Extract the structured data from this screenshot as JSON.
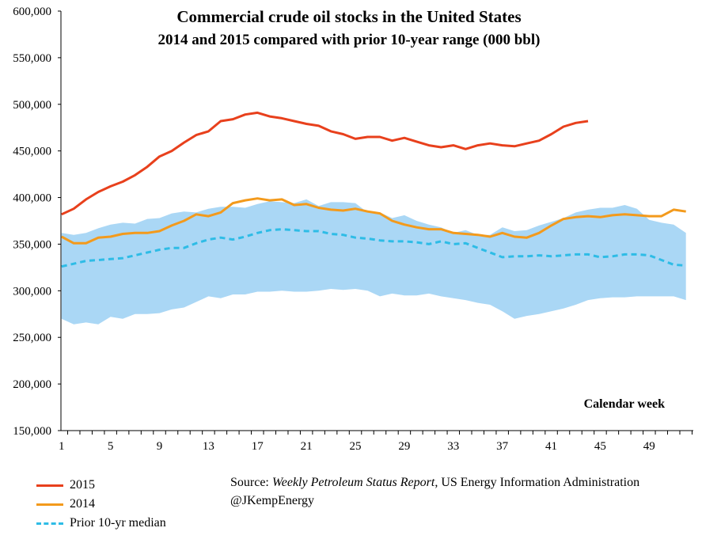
{
  "chart_data": {
    "type": "line",
    "title": "Commercial crude oil stocks in the United States",
    "subtitle": "2014 and 2015 compared with prior 10-year range (000 bbl)",
    "xlabel": "Calendar week",
    "ylabel": "",
    "xlim": [
      1,
      52
    ],
    "ylim": [
      150000,
      600000
    ],
    "x_ticks": [
      1,
      5,
      9,
      13,
      17,
      21,
      25,
      29,
      33,
      37,
      41,
      45,
      49
    ],
    "y_ticks": [
      150000,
      200000,
      250000,
      300000,
      350000,
      400000,
      450000,
      500000,
      550000,
      600000
    ],
    "y_tick_labels": [
      "150,000",
      "200,000",
      "250,000",
      "300,000",
      "350,000",
      "400,000",
      "450,000",
      "500,000",
      "550,000",
      "600,000"
    ],
    "x": [
      1,
      2,
      3,
      4,
      5,
      6,
      7,
      8,
      9,
      10,
      11,
      12,
      13,
      14,
      15,
      16,
      17,
      18,
      19,
      20,
      21,
      22,
      23,
      24,
      25,
      26,
      27,
      28,
      29,
      30,
      31,
      32,
      33,
      34,
      35,
      36,
      37,
      38,
      39,
      40,
      41,
      42,
      43,
      44,
      45,
      46,
      47,
      48,
      49,
      50,
      51,
      52
    ],
    "range": {
      "name": "Prior 10-yr range",
      "color": "#aad7f5",
      "low": [
        270000,
        264000,
        266000,
        264000,
        272000,
        270000,
        275000,
        275000,
        276000,
        280000,
        282000,
        288000,
        294000,
        292000,
        296000,
        296000,
        299000,
        299000,
        300000,
        299000,
        299000,
        300000,
        302000,
        301000,
        302000,
        300000,
        294000,
        297000,
        295000,
        295000,
        297000,
        294000,
        292000,
        290000,
        287000,
        285000,
        278000,
        270000,
        273000,
        275000,
        278000,
        281000,
        285000,
        290000,
        292000,
        293000,
        293000,
        294000,
        294000,
        294000,
        294000,
        290000
      ],
      "high": [
        362000,
        360000,
        362000,
        367000,
        371000,
        373000,
        372000,
        377000,
        378000,
        383000,
        385000,
        384000,
        388000,
        390000,
        390000,
        389000,
        393000,
        396000,
        395000,
        394000,
        398000,
        391000,
        395000,
        395000,
        394000,
        384000,
        384000,
        378000,
        381000,
        375000,
        371000,
        368000,
        362000,
        365000,
        360000,
        360000,
        368000,
        364000,
        365000,
        370000,
        374000,
        378000,
        384000,
        387000,
        389000,
        389000,
        392000,
        388000,
        376000,
        373000,
        371000,
        362000
      ]
    },
    "series": [
      {
        "name": "2015",
        "color": "#e8401c",
        "dash": false,
        "values": [
          382000,
          388000,
          398000,
          406000,
          412000,
          417000,
          424000,
          433000,
          444000,
          450000,
          459000,
          467000,
          471000,
          482000,
          484000,
          489000,
          491000,
          487000,
          485000,
          482000,
          479000,
          477000,
          471000,
          468000,
          463000,
          465000,
          465000,
          461000,
          464000,
          460000,
          456000,
          454000,
          456000,
          452000,
          456000,
          458000,
          456000,
          455000,
          458000,
          461000,
          468000,
          476000,
          480000,
          482000,
          null,
          null,
          null,
          null,
          null,
          null,
          null,
          null
        ]
      },
      {
        "name": "2014",
        "color": "#f39a1c",
        "dash": false,
        "values": [
          358000,
          351000,
          351000,
          357000,
          358000,
          361000,
          362000,
          362000,
          364000,
          370000,
          375000,
          382000,
          380000,
          384000,
          394000,
          397000,
          399000,
          397000,
          398000,
          392000,
          393000,
          389000,
          387000,
          386000,
          388000,
          385000,
          383000,
          375000,
          371000,
          368000,
          366000,
          366000,
          362000,
          361000,
          360000,
          358000,
          362000,
          358000,
          357000,
          362000,
          370000,
          377000,
          379000,
          380000,
          379000,
          381000,
          382000,
          381000,
          380000,
          380000,
          387000,
          385000
        ]
      },
      {
        "name": "Prior 10-yr median",
        "color": "#2ebce6",
        "dash": true,
        "values": [
          326000,
          329000,
          332000,
          333000,
          334000,
          335000,
          338000,
          341000,
          344000,
          346000,
          346000,
          351000,
          355000,
          357000,
          355000,
          358000,
          362000,
          365000,
          366000,
          365000,
          364000,
          364000,
          361000,
          360000,
          357000,
          356000,
          354000,
          353000,
          353000,
          352000,
          350000,
          353000,
          350000,
          351000,
          346000,
          341000,
          336000,
          337000,
          337000,
          338000,
          337000,
          338000,
          339000,
          339000,
          336000,
          337000,
          339000,
          339000,
          338000,
          333000,
          328000,
          327000
        ]
      }
    ]
  },
  "legend": {
    "items": [
      {
        "label": "2015",
        "color": "#e8401c",
        "style": "solid"
      },
      {
        "label": "2014",
        "color": "#f39a1c",
        "style": "solid"
      },
      {
        "label": "Prior 10-yr median",
        "color": "#2ebce6",
        "style": "dashed"
      }
    ]
  },
  "source": {
    "prefix": "Source: ",
    "publication": "Weekly Petroleum Status Report",
    "agency": ", US Energy Information Administration",
    "handle": "@JKempEnergy"
  }
}
